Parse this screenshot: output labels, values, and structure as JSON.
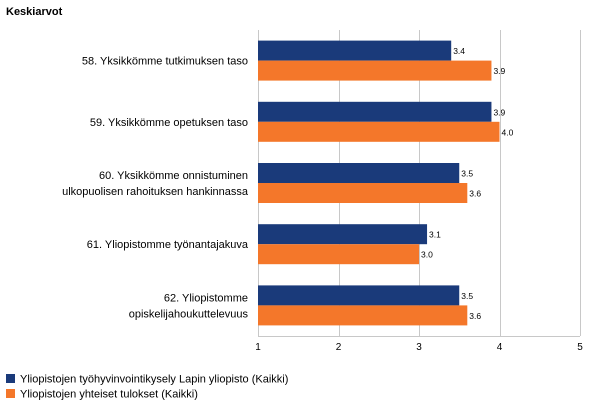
{
  "chart_data": {
    "type": "bar",
    "orientation": "horizontal",
    "title": "Keskiarvot",
    "categories": [
      [
        "58. Yksikkömme tutkimuksen taso"
      ],
      [
        "59. Yksikkömme opetuksen taso"
      ],
      [
        "60. Yksikkömme onnistuminen",
        "ulkopuolisen rahoituksen hankinnassa"
      ],
      [
        "61. Yliopistomme työnantajakuva"
      ],
      [
        "62. Yliopistomme",
        "opiskelijahoukuttelevuus"
      ]
    ],
    "series": [
      {
        "name": "Yliopistojen työhyvinvointikysely Lapin yliopisto (Kaikki)",
        "color": "#1a3a7a",
        "values": [
          3.4,
          3.9,
          3.5,
          3.1,
          3.5
        ],
        "labels": [
          "3.4",
          "3.9",
          "3.5",
          "3.1",
          "3.5"
        ]
      },
      {
        "name": "Yliopistojen yhteiset tulokset (Kaikki)",
        "color": "#f4772a",
        "values": [
          3.9,
          4.0,
          3.6,
          3.0,
          3.6
        ],
        "labels": [
          "3.9",
          "4.0",
          "3.6",
          "3.0",
          "3.6"
        ]
      }
    ],
    "xlim": [
      1,
      5
    ],
    "xticks": [
      "1",
      "2",
      "3",
      "4",
      "5"
    ],
    "grid": true,
    "legend_position": "bottom-left"
  }
}
